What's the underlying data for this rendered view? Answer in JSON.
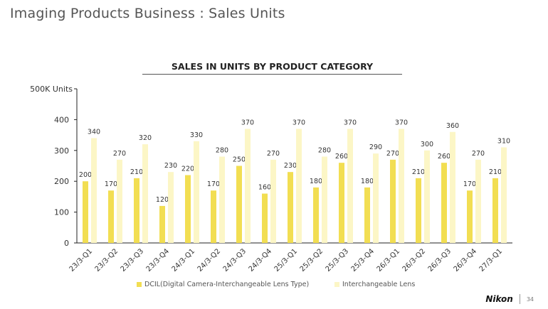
{
  "page": {
    "title": "Imaging Products Business : Sales Units",
    "page_number": "34",
    "logo_text": "Nikon"
  },
  "colors": {
    "dcil": "#F2DE52",
    "lens": "#FCF6C6",
    "axis": "#222222",
    "text": "#333333"
  },
  "chart_data": {
    "type": "bar",
    "title": "SALES IN UNITS BY PRODUCT CATEGORY",
    "ylabel": "500K Units",
    "xlabel": "",
    "ylim": [
      0,
      500
    ],
    "yticks": [
      0,
      100,
      200,
      300,
      400
    ],
    "grid": false,
    "legend_position": "bottom",
    "categories": [
      "23/3-Q1",
      "23/3-Q2",
      "23/3-Q3",
      "23/3-Q4",
      "24/3-Q1",
      "24/3-Q2",
      "24/3-Q3",
      "24/3-Q4",
      "25/3-Q1",
      "25/3-Q2",
      "25/3-Q3",
      "25/3-Q4",
      "26/3-Q1",
      "26/3-Q2",
      "26/3-Q3",
      "26/3-Q4",
      "27/3-Q1"
    ],
    "series": [
      {
        "name": "DCIL(Digital Camera-Interchangeable Lens Type)",
        "color": "#F2DE52",
        "values": [
          200,
          170,
          210,
          120,
          220,
          170,
          250,
          160,
          230,
          180,
          260,
          180,
          270,
          210,
          260,
          170,
          210
        ]
      },
      {
        "name": "Interchangeable Lens",
        "color": "#FCF6C6",
        "values": [
          340,
          270,
          320,
          230,
          330,
          280,
          370,
          270,
          370,
          280,
          370,
          290,
          370,
          300,
          360,
          270,
          310
        ]
      }
    ]
  }
}
